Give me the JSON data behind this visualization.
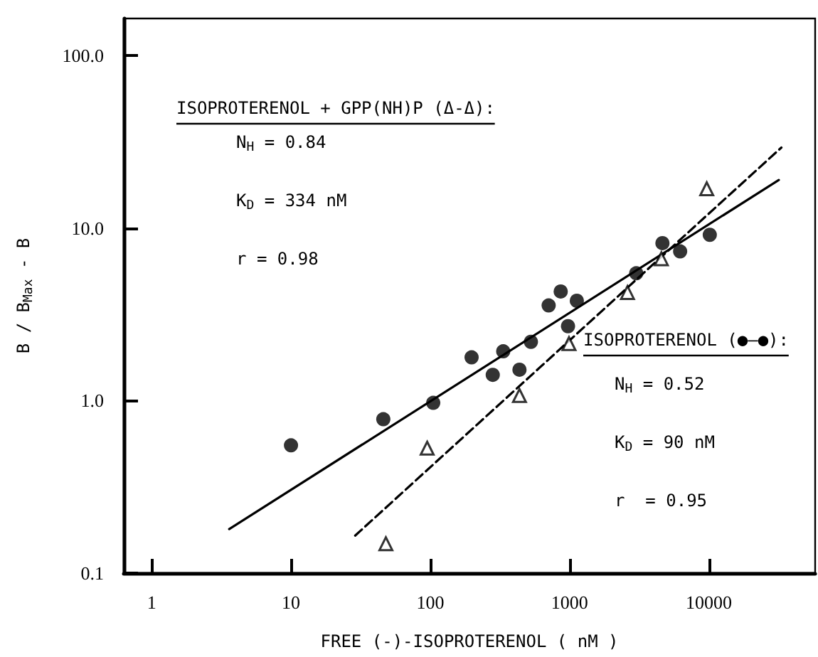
{
  "chart_data": {
    "type": "scatter",
    "xlabel": "FREE (-)-ISOPROTERENOL ( nM )",
    "ylabel": "B / B$_{Max}$ - B",
    "log": "xy",
    "xlim": [
      0.63,
      58000
    ],
    "ylim": [
      0.1,
      164
    ],
    "xticks": [
      1,
      10,
      100,
      1000,
      10000
    ],
    "yticks": [
      {
        "value": 0.1,
        "label": "0.1"
      },
      {
        "value": 1,
        "label": "1.0"
      },
      {
        "value": 10,
        "label": "10.0"
      },
      {
        "value": 100,
        "label": "100.0"
      }
    ],
    "grid": false,
    "series": [
      {
        "marker": "circle",
        "color": "#000000",
        "x": [
          10,
          46,
          105,
          198,
          281,
          334,
          437,
          528,
          708,
          864,
          975,
          1128,
          3013,
          4645,
          6223,
          10160
        ],
        "values": [
          0.55,
          0.78,
          0.97,
          1.78,
          1.41,
          1.93,
          1.51,
          2.19,
          3.56,
          4.29,
          2.7,
          3.79,
          5.47,
          8.18,
          7.32,
          9.14
        ]
      },
      {
        "marker": "triangle",
        "color": "#000000",
        "x": [
          48,
          95,
          437,
          991,
          2606,
          4563,
          9660
        ],
        "values": [
          0.148,
          0.53,
          1.07,
          2.14,
          4.23,
          6.64,
          16.9
        ]
      },
      {
        "type": "line",
        "marker": "none",
        "line_style": "solid",
        "color": "#000000",
        "x": [
          3.6,
          31800
        ],
        "values": [
          0.18,
          19
        ]
      },
      {
        "type": "line",
        "marker": "none",
        "line_style": "dashed",
        "color": "#000000",
        "x": [
          28.9,
          33200
        ],
        "values": [
          0.165,
          29.3
        ]
      }
    ],
    "annotations": [
      "ISOPROTERENOL + GPP(NH)P (Δ-Δ):",
      "N$_{H}$ = 0.84",
      "K$_{D}$ = 334 nM",
      "r = 0.98",
      "ISOPROTERENOL (●—●):",
      "N$_{H}$ = 0.52",
      "K$_{D}$ = 90 nM",
      "r  = 0.95"
    ]
  }
}
